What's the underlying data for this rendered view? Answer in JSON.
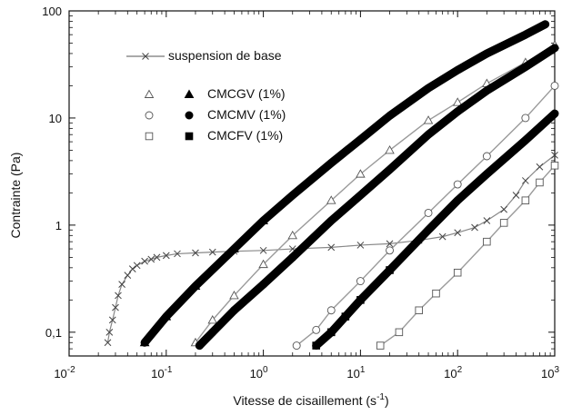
{
  "chart_data": {
    "type": "scatter",
    "xscale": "log",
    "yscale": "log",
    "xlim": [
      0.01,
      1000
    ],
    "ylim": [
      0.06,
      100
    ],
    "xlabel_main": "Vitesse de cisaillement (s",
    "xlabel_sup": "-1",
    "xlabel_end": ")",
    "ylabel": "Contrainte (Pa)",
    "x_ticks": [
      {
        "v": 0.01,
        "base": "10",
        "exp": "-2"
      },
      {
        "v": 0.1,
        "base": "10",
        "exp": "-1"
      },
      {
        "v": 1,
        "base": "10",
        "exp": "0"
      },
      {
        "v": 10,
        "base": "10",
        "exp": "1"
      },
      {
        "v": 100,
        "base": "10",
        "exp": "2"
      },
      {
        "v": 1000,
        "base": "10",
        "exp": "3"
      }
    ],
    "y_ticks": [
      {
        "v": 0.1,
        "label": "0,1"
      },
      {
        "v": 1,
        "label": "1"
      },
      {
        "v": 10,
        "label": "10"
      },
      {
        "v": 100,
        "label": "100"
      }
    ],
    "legend": {
      "position": "upper-left",
      "base_suspension": "suspension de base",
      "entries": [
        {
          "label": "CMCGV (1%)",
          "marker": "triangle"
        },
        {
          "label": "CMCMV (1%)",
          "marker": "circle"
        },
        {
          "label": "CMCFV (1%)",
          "marker": "square"
        }
      ]
    },
    "series": [
      {
        "name": "suspension de base",
        "marker": "x",
        "filled": false,
        "x": [
          0.025,
          0.026,
          0.028,
          0.03,
          0.032,
          0.035,
          0.04,
          0.045,
          0.05,
          0.06,
          0.07,
          0.08,
          0.1,
          0.13,
          0.2,
          0.3,
          0.5,
          1,
          2,
          5,
          10,
          20,
          40,
          70,
          100,
          150,
          200,
          300,
          400,
          500,
          700,
          1000
        ],
        "y": [
          0.08,
          0.1,
          0.13,
          0.17,
          0.22,
          0.28,
          0.34,
          0.39,
          0.42,
          0.46,
          0.48,
          0.5,
          0.52,
          0.54,
          0.55,
          0.56,
          0.57,
          0.58,
          0.6,
          0.62,
          0.65,
          0.67,
          0.72,
          0.78,
          0.85,
          0.95,
          1.1,
          1.4,
          1.9,
          2.6,
          3.5,
          4.5
        ]
      },
      {
        "name": "CMCGV (1%) filled",
        "marker": "triangle",
        "filled": true,
        "x": [
          0.06,
          0.1,
          0.2,
          0.5,
          1,
          2,
          5,
          10,
          20,
          50,
          100,
          200,
          500,
          800
        ],
        "y": [
          0.08,
          0.14,
          0.27,
          0.6,
          1.1,
          1.9,
          3.8,
          6.3,
          10.5,
          19,
          28,
          40,
          60,
          75
        ]
      },
      {
        "name": "CMCGV (1%) open",
        "marker": "triangle",
        "filled": false,
        "x": [
          0.2,
          0.3,
          0.5,
          1,
          2,
          5,
          10,
          20,
          50,
          100,
          200,
          500,
          1000
        ],
        "y": [
          0.08,
          0.13,
          0.22,
          0.43,
          0.8,
          1.7,
          3,
          5,
          9.5,
          14,
          21,
          33,
          48
        ]
      },
      {
        "name": "CMCMV (1%) open",
        "marker": "circle",
        "filled": false,
        "x": [
          2.2,
          3.5,
          5,
          10,
          20,
          50,
          100,
          200,
          500,
          1000
        ],
        "y": [
          0.075,
          0.105,
          0.16,
          0.3,
          0.58,
          1.3,
          2.4,
          4.4,
          10,
          20
        ]
      },
      {
        "name": "CMCMV (1%) filled",
        "marker": "circle",
        "filled": true,
        "x": [
          0.22,
          0.3,
          0.5,
          1,
          2,
          5,
          10,
          20,
          50,
          100,
          200,
          500,
          1000
        ],
        "y": [
          0.075,
          0.1,
          0.16,
          0.28,
          0.5,
          1.1,
          1.9,
          3.3,
          7,
          11.5,
          18,
          30,
          45
        ]
      },
      {
        "name": "CMCFV (1%) open",
        "marker": "square",
        "filled": false,
        "x": [
          16,
          25,
          40,
          60,
          100,
          200,
          300,
          500,
          700,
          1000
        ],
        "y": [
          0.075,
          0.1,
          0.16,
          0.23,
          0.36,
          0.7,
          1.05,
          1.7,
          2.5,
          3.6
        ]
      },
      {
        "name": "CMCFV (1%) filled",
        "marker": "square",
        "filled": true,
        "x": [
          3.5,
          5,
          7,
          10,
          20,
          50,
          100,
          200,
          500,
          1000
        ],
        "y": [
          0.075,
          0.1,
          0.14,
          0.2,
          0.38,
          0.9,
          1.7,
          3,
          6.2,
          11
        ]
      }
    ]
  }
}
